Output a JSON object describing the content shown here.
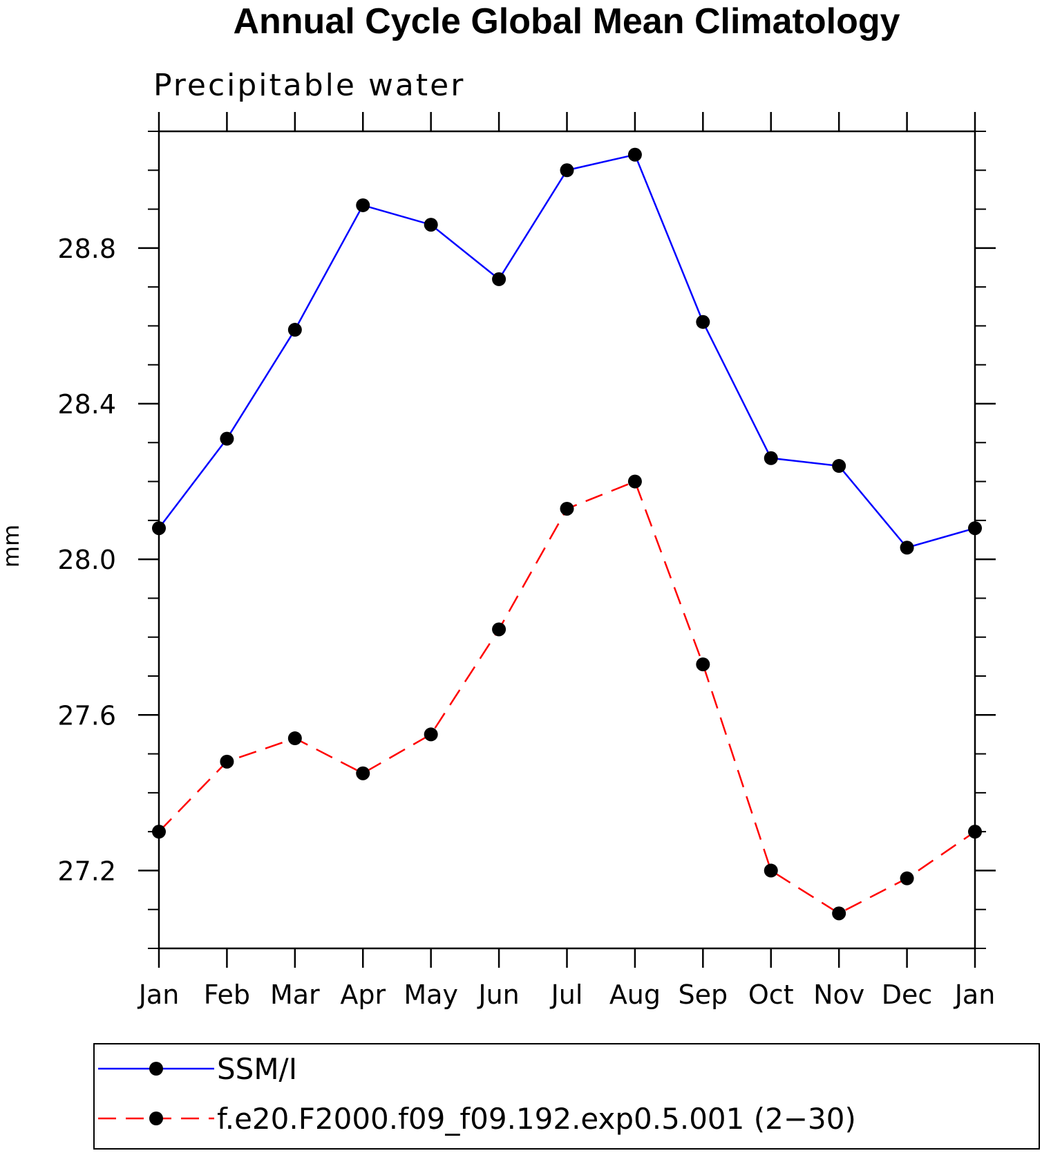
{
  "chart_data": {
    "type": "line",
    "title": "Annual Cycle Global Mean Climatology",
    "subtitle": "Precipitable water",
    "xlabel": "",
    "ylabel": "mm",
    "categories": [
      "Jan",
      "Feb",
      "Mar",
      "Apr",
      "May",
      "Jun",
      "Jul",
      "Aug",
      "Sep",
      "Oct",
      "Nov",
      "Dec",
      "Jan"
    ],
    "ylim": [
      27.0,
      29.1
    ],
    "yticks": [
      27.2,
      27.6,
      28.0,
      28.4,
      28.8
    ],
    "ytick_labels": [
      "27.2",
      "27.6",
      "28.0",
      "28.4",
      "28.8"
    ],
    "yminor_step": 0.1,
    "grid": false,
    "legend_position": "bottom",
    "series": [
      {
        "name": "SSM/I",
        "color": "#0000ff",
        "dash": "solid",
        "marker": "dot",
        "values": [
          28.08,
          28.31,
          28.59,
          28.91,
          28.86,
          28.72,
          29.0,
          29.04,
          28.61,
          28.26,
          28.24,
          28.03,
          28.08
        ]
      },
      {
        "name": "f.e20.F2000.f09_f09.192.exp0.5.001 (2−30)",
        "color": "#ff0000",
        "dash": "dashed",
        "marker": "dot",
        "values": [
          27.3,
          27.48,
          27.54,
          27.45,
          27.55,
          27.82,
          28.13,
          28.2,
          27.73,
          27.2,
          27.09,
          27.18,
          27.3
        ]
      }
    ]
  }
}
